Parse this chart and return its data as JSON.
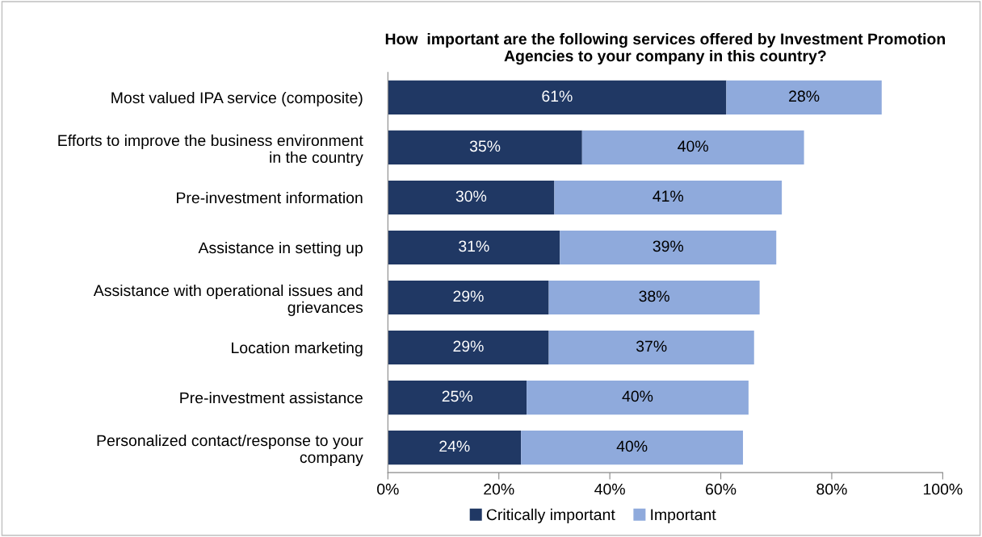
{
  "chart_data": {
    "type": "bar",
    "orientation": "horizontal",
    "stacked": true,
    "title": "How  important are the following services offered by Investment Promotion Agencies to your company in this country?",
    "categories": [
      "Most valued IPA service (composite)",
      "Efforts to improve the business environment\nin the country",
      "Pre-investment information",
      "Assistance in setting up",
      "Assistance with operational issues and\ngrievances",
      "Location marketing",
      "Pre-investment assistance",
      "Personalized contact/response to your\ncompany"
    ],
    "series": [
      {
        "name": "Critically important",
        "color": "#203864",
        "values": [
          61,
          35,
          30,
          31,
          29,
          29,
          25,
          24
        ],
        "value_labels": [
          "61%",
          "35%",
          "30%",
          "31%",
          "29%",
          "29%",
          "25%",
          "24%"
        ]
      },
      {
        "name": "Important",
        "color": "#8faadc",
        "values": [
          28,
          40,
          41,
          39,
          38,
          37,
          40,
          40
        ],
        "value_labels": [
          "28%",
          "40%",
          "41%",
          "39%",
          "38%",
          "37%",
          "40%",
          "40%"
        ]
      }
    ],
    "xlim": [
      0,
      100
    ],
    "xticks": [
      {
        "value": 0,
        "label": "0%"
      },
      {
        "value": 20,
        "label": "20%"
      },
      {
        "value": 40,
        "label": "40%"
      },
      {
        "value": 60,
        "label": "60%"
      },
      {
        "value": 80,
        "label": "80%"
      },
      {
        "value": 100,
        "label": "100%"
      }
    ],
    "legend": "bottom",
    "grid": false
  }
}
